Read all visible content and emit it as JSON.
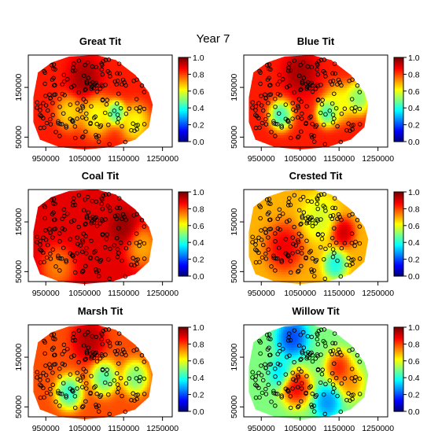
{
  "figure": {
    "title": "Year 7"
  },
  "chart_data": {
    "type": "heatmap",
    "title": "Year 7",
    "x_ticks": [
      "950000",
      "1050000",
      "1150000",
      "1250000"
    ],
    "y_ticks": [
      "50000",
      "150000"
    ],
    "x_values": [
      950000,
      1050000,
      1150000,
      1250000
    ],
    "y_values": [
      50000,
      150000
    ],
    "colorbar": {
      "min": 0.0,
      "max": 1.0,
      "ticks": [
        "0.0",
        "0.2",
        "0.4",
        "0.6",
        "0.8",
        "1.0"
      ]
    },
    "panels": [
      {
        "title": "Great Tit",
        "base": 0.85,
        "features": [
          {
            "x": 1130000,
            "y": 100000,
            "v": 0.3,
            "r": 18000
          },
          {
            "x": 1080000,
            "y": 95000,
            "v": 0.55,
            "r": 30000
          },
          {
            "x": 1180000,
            "y": 80000,
            "v": 0.55,
            "r": 28000
          },
          {
            "x": 1010000,
            "y": 100000,
            "v": 0.6,
            "r": 25000
          },
          {
            "x": 1050000,
            "y": 170000,
            "v": 1.0,
            "r": 30000
          }
        ]
      },
      {
        "title": "Blue Tit",
        "base": 0.85,
        "features": [
          {
            "x": 1000000,
            "y": 95000,
            "v": 0.3,
            "r": 22000
          },
          {
            "x": 1120000,
            "y": 100000,
            "v": 0.3,
            "r": 20000
          },
          {
            "x": 1200000,
            "y": 130000,
            "v": 0.4,
            "r": 25000
          },
          {
            "x": 1150000,
            "y": 120000,
            "v": 0.55,
            "r": 28000
          },
          {
            "x": 1050000,
            "y": 180000,
            "v": 1.0,
            "r": 30000
          }
        ]
      },
      {
        "title": "Coal Tit",
        "base": 0.9,
        "features": [
          {
            "x": 1200000,
            "y": 100000,
            "v": 0.65,
            "r": 30000
          },
          {
            "x": 980000,
            "y": 60000,
            "v": 0.7,
            "r": 30000
          },
          {
            "x": 1150000,
            "y": 140000,
            "v": 1.0,
            "r": 25000
          }
        ]
      },
      {
        "title": "Crested Tit",
        "base": 0.7,
        "features": [
          {
            "x": 1140000,
            "y": 65000,
            "v": 0.3,
            "r": 22000
          },
          {
            "x": 1100000,
            "y": 160000,
            "v": 0.55,
            "r": 35000
          },
          {
            "x": 1160000,
            "y": 130000,
            "v": 1.0,
            "r": 22000
          },
          {
            "x": 1010000,
            "y": 100000,
            "v": 0.95,
            "r": 35000
          }
        ]
      },
      {
        "title": "Marsh Tit",
        "base": 0.8,
        "features": [
          {
            "x": 1010000,
            "y": 80000,
            "v": 0.3,
            "r": 25000
          },
          {
            "x": 1100000,
            "y": 110000,
            "v": 0.35,
            "r": 25000
          },
          {
            "x": 1180000,
            "y": 110000,
            "v": 0.4,
            "r": 25000
          },
          {
            "x": 1060000,
            "y": 185000,
            "v": 1.0,
            "r": 30000
          }
        ]
      },
      {
        "title": "Willow Tit",
        "base": 0.5,
        "features": [
          {
            "x": 1030000,
            "y": 190000,
            "v": 0.1,
            "r": 30000
          },
          {
            "x": 1120000,
            "y": 60000,
            "v": 0.2,
            "r": 25000
          },
          {
            "x": 1000000,
            "y": 120000,
            "v": 0.3,
            "r": 22000
          },
          {
            "x": 1040000,
            "y": 90000,
            "v": 1.0,
            "r": 28000
          },
          {
            "x": 1150000,
            "y": 130000,
            "v": 0.95,
            "r": 25000
          },
          {
            "x": 1180000,
            "y": 100000,
            "v": 0.8,
            "r": 25000
          }
        ]
      }
    ]
  }
}
